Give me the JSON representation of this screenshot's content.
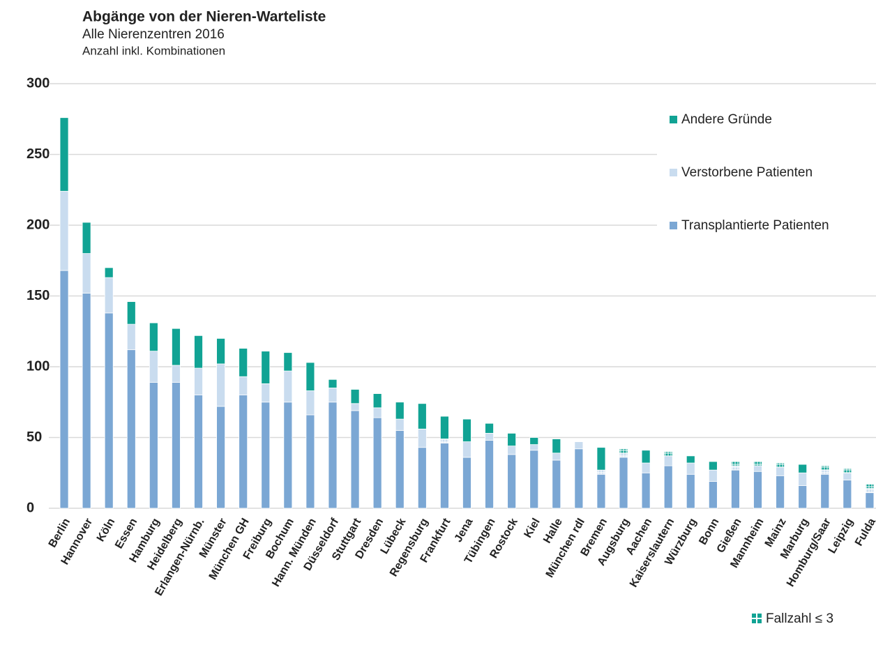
{
  "chart_data": {
    "type": "stacked_bar",
    "title": "Abgänge von der Nieren-Warteliste",
    "subtitle": "Alle Nierenzentren 2016",
    "subtitle2": "Anzahl inkl. Kombinationen",
    "annotation": "Fallzahl ≤ 3",
    "categories": [
      "Berlin",
      "Hannover",
      "Köln",
      "Essen",
      "Hamburg",
      "Heidelberg",
      "Erlangen-Nürnb.",
      "Münster",
      "München GH",
      "Freiburg",
      "Bochum",
      "Hann. Münden",
      "Düsseldorf",
      "Stuttgart",
      "Dresden",
      "Lübeck",
      "Regensburg",
      "Frankfurt",
      "Jena",
      "Tübingen",
      "Rostock",
      "Kiel",
      "Halle",
      "München rdI",
      "Bremen",
      "Augsburg",
      "Aachen",
      "Kaiserslautern",
      "Würzburg",
      "Bonn",
      "Gießen",
      "Mannheim",
      "Mainz",
      "Marburg",
      "Homburg/Saar",
      "Leipzig",
      "Fulda"
    ],
    "series": [
      {
        "name": "Transplantierte Patienten",
        "color": "#7ba7d4",
        "values": [
          168,
          152,
          138,
          112,
          89,
          89,
          80,
          72,
          80,
          75,
          75,
          66,
          75,
          69,
          64,
          55,
          43,
          46,
          36,
          48,
          38,
          41,
          34,
          42,
          24,
          36,
          25,
          30,
          24,
          19,
          27,
          26,
          23,
          16,
          24,
          20,
          11
        ]
      },
      {
        "name": "Verstorbene Patienten",
        "color": "#c9dcef",
        "values": [
          56,
          28,
          25,
          18,
          22,
          12,
          19,
          30,
          13,
          13,
          22,
          17,
          10,
          5,
          7,
          8,
          13,
          3,
          11,
          5,
          6,
          4,
          5,
          5,
          3,
          3,
          7,
          7,
          8,
          8,
          3,
          4,
          6,
          9,
          3,
          5,
          3
        ]
      },
      {
        "name": "Andere Gründe",
        "color": "#11a394",
        "values": [
          52,
          22,
          7,
          16,
          20,
          26,
          23,
          18,
          20,
          23,
          13,
          20,
          6,
          10,
          10,
          12,
          18,
          16,
          16,
          7,
          9,
          5,
          10,
          0,
          16,
          3,
          9,
          3,
          5,
          6,
          3,
          3,
          3,
          6,
          3,
          3,
          3
        ]
      }
    ],
    "ylim": [
      0,
      300
    ],
    "yticks": [
      0,
      50,
      100,
      150,
      200,
      250,
      300
    ],
    "grid": true,
    "legend": "right"
  }
}
